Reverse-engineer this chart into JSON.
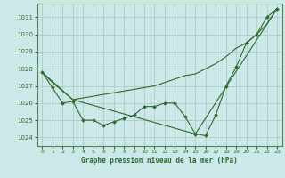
{
  "title": "Graphe pression niveau de la mer (hPa)",
  "bg_color": "#cce8e8",
  "grid_color": "#b0c8c8",
  "line_color": "#2d6a2d",
  "xlim": [
    -0.5,
    23.5
  ],
  "ylim": [
    1023.5,
    1031.8
  ],
  "yticks": [
    1024,
    1025,
    1026,
    1027,
    1028,
    1029,
    1030,
    1031
  ],
  "xticks": [
    0,
    1,
    2,
    3,
    4,
    5,
    6,
    7,
    8,
    9,
    10,
    11,
    12,
    13,
    14,
    15,
    16,
    17,
    18,
    19,
    20,
    21,
    22,
    23
  ],
  "series_main": {
    "x": [
      0,
      1,
      2,
      3,
      4,
      5,
      6,
      7,
      8,
      9,
      10,
      11,
      12,
      13,
      14,
      15,
      16,
      17,
      18,
      19,
      20,
      21,
      22,
      23
    ],
    "y": [
      1027.8,
      1026.9,
      1026.0,
      1026.1,
      1025.0,
      1025.0,
      1024.7,
      1024.9,
      1025.1,
      1025.3,
      1025.8,
      1025.8,
      1026.0,
      1026.0,
      1025.2,
      1024.2,
      1024.1,
      1025.3,
      1027.0,
      1028.1,
      1029.5,
      1030.0,
      1031.0,
      1031.5
    ]
  },
  "series_upper": {
    "x": [
      0,
      1,
      2,
      3,
      4,
      5,
      6,
      7,
      8,
      9,
      10,
      11,
      12,
      13,
      14,
      15,
      16,
      17,
      18,
      19,
      20,
      21,
      22,
      23
    ],
    "y": [
      1027.8,
      1027.2,
      1026.7,
      1026.2,
      1026.3,
      1026.4,
      1026.5,
      1026.6,
      1026.7,
      1026.8,
      1026.9,
      1027.0,
      1027.2,
      1027.4,
      1027.6,
      1027.7,
      1028.0,
      1028.3,
      1028.7,
      1029.2,
      1029.5,
      1030.0,
      1030.6,
      1031.5
    ]
  },
  "series_lower": {
    "x": [
      0,
      3,
      15,
      23
    ],
    "y": [
      1027.8,
      1026.2,
      1024.2,
      1031.5
    ]
  }
}
